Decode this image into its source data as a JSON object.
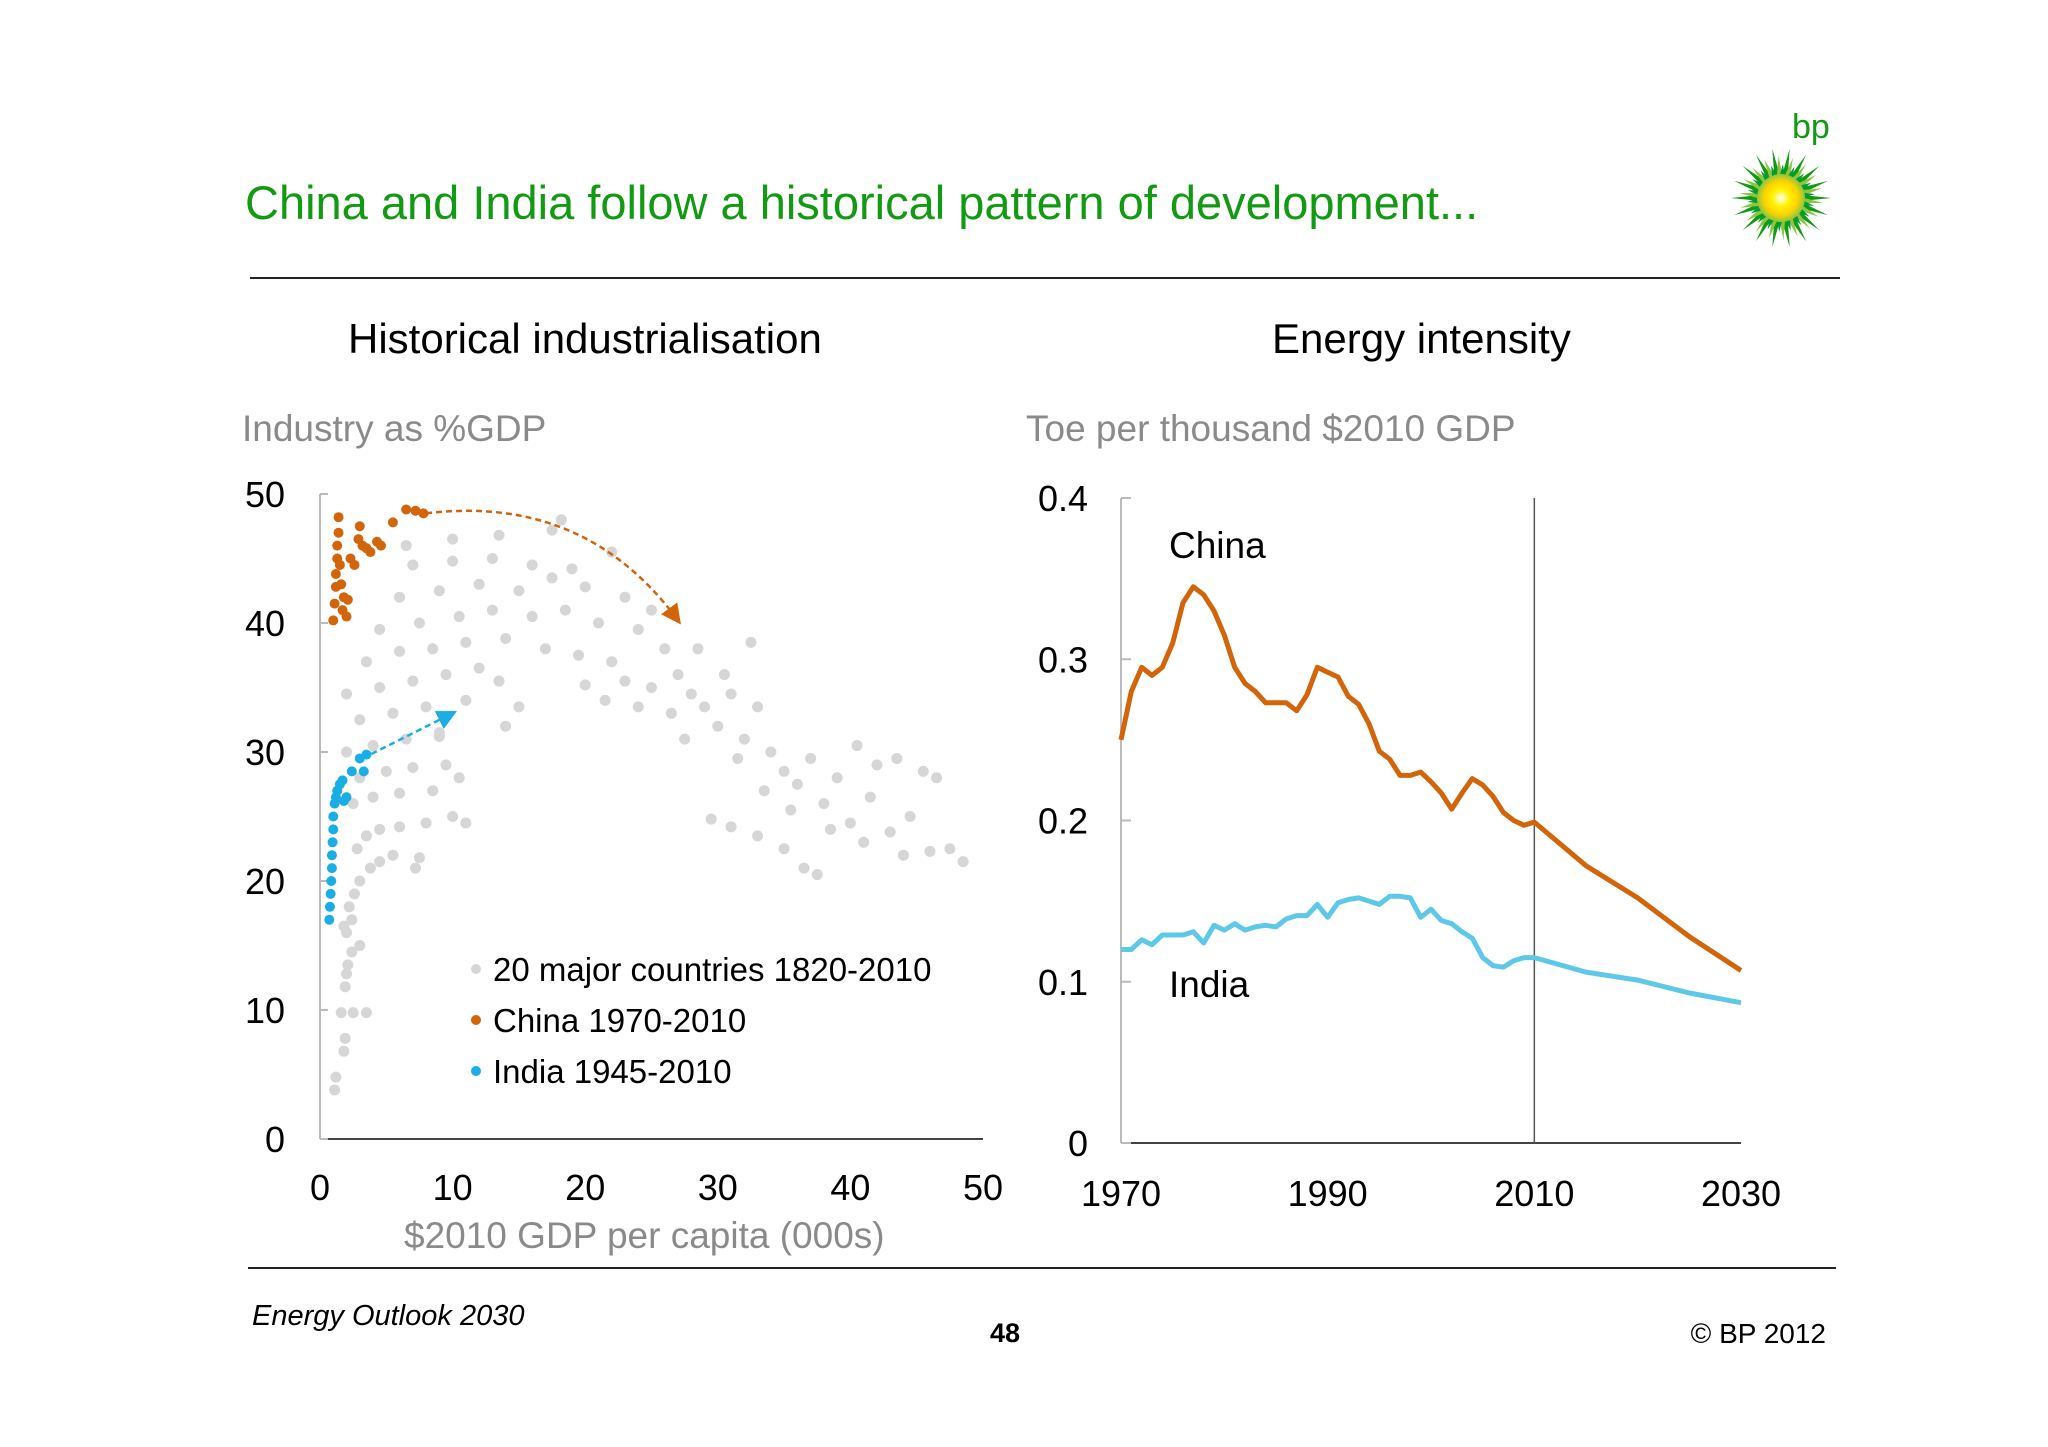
{
  "header": {
    "title": "China and India follow a historical pattern of development...",
    "logo_text": "bp"
  },
  "colors": {
    "title": "#139a13",
    "china": "#d2640a",
    "india": "#1aaee5",
    "india_line": "#5ec8e8",
    "countries": "#d6d6d6"
  },
  "footer": {
    "left": "Energy Outlook 2030",
    "page": "48",
    "copyright": "© BP 2012"
  },
  "chart_data": [
    {
      "type": "scatter",
      "title": "Historical industrialisation",
      "ylabel": "Industry as %GDP",
      "xlabel": "$2010 GDP per capita (000s)",
      "xlim": [
        0,
        50
      ],
      "ylim": [
        0,
        50
      ],
      "xticks": [
        "0",
        "10",
        "20",
        "30",
        "40",
        "50"
      ],
      "yticks": [
        "0",
        "10",
        "20",
        "30",
        "40",
        "50"
      ],
      "grid": false,
      "legend": "bottom-right",
      "series": [
        {
          "name": "20 major countries 1820-2010",
          "color": "#d6d6d6",
          "points": [
            [
              1.1,
              3.8
            ],
            [
              1.2,
              4.8
            ],
            [
              1.8,
              6.8
            ],
            [
              1.9,
              7.8
            ],
            [
              1.6,
              9.8
            ],
            [
              2.5,
              9.8
            ],
            [
              3.5,
              9.8
            ],
            [
              1.9,
              11.8
            ],
            [
              2.0,
              12.8
            ],
            [
              2.1,
              13.5
            ],
            [
              1.8,
              16.5
            ],
            [
              2.4,
              17
            ],
            [
              2.2,
              18
            ],
            [
              2.6,
              19
            ],
            [
              3.0,
              20
            ],
            [
              3.8,
              21
            ],
            [
              4.5,
              21.5
            ],
            [
              5.5,
              22
            ],
            [
              7.5,
              21.8
            ],
            [
              7.2,
              21
            ],
            [
              2.8,
              22.5
            ],
            [
              3.5,
              23.5
            ],
            [
              4.5,
              24
            ],
            [
              6.0,
              24.2
            ],
            [
              8.0,
              24.5
            ],
            [
              10.0,
              25
            ],
            [
              2.5,
              26
            ],
            [
              4.0,
              26.5
            ],
            [
              6.0,
              26.8
            ],
            [
              8.5,
              27
            ],
            [
              3.0,
              28
            ],
            [
              5.0,
              28.5
            ],
            [
              7.0,
              28.8
            ],
            [
              9.5,
              29
            ],
            [
              2.0,
              30
            ],
            [
              4.0,
              30.5
            ],
            [
              6.5,
              31
            ],
            [
              9.0,
              31.2
            ],
            [
              3.0,
              32.5
            ],
            [
              5.5,
              33
            ],
            [
              8.0,
              33.5
            ],
            [
              11.0,
              34
            ],
            [
              13.5,
              35.5
            ],
            [
              2.0,
              34.5
            ],
            [
              4.5,
              35
            ],
            [
              7.0,
              35.5
            ],
            [
              9.5,
              36
            ],
            [
              12.0,
              36.5
            ],
            [
              3.5,
              37
            ],
            [
              6.0,
              37.8
            ],
            [
              8.5,
              38
            ],
            [
              11.0,
              38.5
            ],
            [
              14.0,
              38.8
            ],
            [
              17.0,
              38
            ],
            [
              19.5,
              37.5
            ],
            [
              22.0,
              37
            ],
            [
              4.5,
              39.5
            ],
            [
              7.5,
              40
            ],
            [
              10.5,
              40.5
            ],
            [
              13.0,
              41
            ],
            [
              16.0,
              40.5
            ],
            [
              18.5,
              41
            ],
            [
              21.0,
              40
            ],
            [
              24.0,
              39.5
            ],
            [
              6.0,
              42
            ],
            [
              9.0,
              42.5
            ],
            [
              12.0,
              43
            ],
            [
              15.0,
              42.5
            ],
            [
              17.5,
              43.5
            ],
            [
              20.0,
              42.8
            ],
            [
              23.0,
              42
            ],
            [
              7.0,
              44.5
            ],
            [
              10.0,
              44.8
            ],
            [
              13.0,
              45
            ],
            [
              16.0,
              44.5
            ],
            [
              19.0,
              44.2
            ],
            [
              6.5,
              46
            ],
            [
              10.0,
              46.5
            ],
            [
              13.5,
              46.8
            ],
            [
              17.5,
              47.2
            ],
            [
              18.2,
              48
            ],
            [
              22.0,
              45.5
            ],
            [
              25.0,
              41
            ],
            [
              26.0,
              38
            ],
            [
              27.0,
              36
            ],
            [
              28.0,
              34.5
            ],
            [
              26.5,
              33
            ],
            [
              29.0,
              33.5
            ],
            [
              30.0,
              32
            ],
            [
              31.0,
              34.5
            ],
            [
              32.0,
              31
            ],
            [
              33.0,
              33.5
            ],
            [
              31.5,
              29.5
            ],
            [
              34.0,
              30
            ],
            [
              35.0,
              28.5
            ],
            [
              33.5,
              27
            ],
            [
              36.0,
              27.5
            ],
            [
              37.0,
              29.5
            ],
            [
              35.5,
              25.5
            ],
            [
              38.0,
              26
            ],
            [
              39.0,
              28
            ],
            [
              40.5,
              30.5
            ],
            [
              38.5,
              24
            ],
            [
              40.0,
              24.5
            ],
            [
              41.5,
              26.5
            ],
            [
              42.0,
              29
            ],
            [
              43.5,
              29.5
            ],
            [
              41.0,
              23
            ],
            [
              43.0,
              23.8
            ],
            [
              44.5,
              25
            ],
            [
              45.5,
              28.5
            ],
            [
              46.5,
              28
            ],
            [
              44.0,
              22
            ],
            [
              46.0,
              22.3
            ],
            [
              47.5,
              22.5
            ],
            [
              48.5,
              21.5
            ],
            [
              29.5,
              24.8
            ],
            [
              31.0,
              24.2
            ],
            [
              33.0,
              23.5
            ],
            [
              35.0,
              22.5
            ],
            [
              36.5,
              21
            ],
            [
              37.5,
              20.5
            ],
            [
              23.0,
              35.5
            ],
            [
              25.0,
              35
            ],
            [
              27.5,
              31
            ],
            [
              30.5,
              36
            ],
            [
              32.5,
              38.5
            ],
            [
              28.5,
              38
            ],
            [
              24.0,
              33.5
            ],
            [
              20.0,
              35.2
            ],
            [
              21.5,
              34
            ],
            [
              15.0,
              33.5
            ],
            [
              14.0,
              32
            ],
            [
              9.0,
              31.5
            ],
            [
              10.5,
              28
            ],
            [
              11.0,
              24.5
            ],
            [
              3.0,
              15
            ],
            [
              2.4,
              14.5
            ],
            [
              2.0,
              16
            ]
          ]
        },
        {
          "name": "China 1970-2010",
          "color": "#d2640a",
          "points": [
            [
              1.0,
              40.2
            ],
            [
              1.1,
              41.5
            ],
            [
              1.2,
              42.8
            ],
            [
              1.2,
              43.8
            ],
            [
              1.3,
              45
            ],
            [
              1.3,
              46
            ],
            [
              1.4,
              47
            ],
            [
              1.4,
              48.2
            ],
            [
              1.5,
              44.5
            ],
            [
              1.6,
              43
            ],
            [
              1.7,
              41
            ],
            [
              1.8,
              42
            ],
            [
              2.0,
              40.5
            ],
            [
              2.1,
              41.8
            ],
            [
              2.3,
              45
            ],
            [
              2.6,
              44.5
            ],
            [
              2.9,
              46.5
            ],
            [
              3.0,
              47.5
            ],
            [
              3.2,
              46
            ],
            [
              3.5,
              45.8
            ],
            [
              3.8,
              45.5
            ],
            [
              4.3,
              46.3
            ],
            [
              4.6,
              46
            ],
            [
              5.5,
              47.8
            ],
            [
              6.5,
              48.8
            ],
            [
              7.2,
              48.7
            ],
            [
              7.8,
              48.5
            ]
          ]
        },
        {
          "name": "India 1945-2010",
          "color": "#1aaee5",
          "points": [
            [
              0.7,
              17
            ],
            [
              0.75,
              18
            ],
            [
              0.8,
              19
            ],
            [
              0.85,
              20
            ],
            [
              0.9,
              21
            ],
            [
              0.9,
              22
            ],
            [
              0.95,
              23
            ],
            [
              1.0,
              24
            ],
            [
              1.0,
              25
            ],
            [
              1.1,
              26
            ],
            [
              1.2,
              26.5
            ],
            [
              1.3,
              27
            ],
            [
              1.5,
              27.5
            ],
            [
              1.7,
              27.8
            ],
            [
              1.8,
              26.2
            ],
            [
              2.0,
              26.5
            ],
            [
              2.4,
              28.5
            ],
            [
              3.0,
              29.5
            ],
            [
              3.3,
              28.5
            ],
            [
              3.5,
              29.8
            ]
          ]
        }
      ],
      "arrows": [
        {
          "series": "China 1970-2010",
          "from": [
            8,
            48.5
          ],
          "to": [
            27,
            40.2
          ]
        },
        {
          "series": "India 1945-2010",
          "from": [
            3.2,
            29.5
          ],
          "to": [
            10,
            33
          ]
        }
      ]
    },
    {
      "type": "line",
      "title": "Energy intensity",
      "ylabel": "Toe per thousand $2010 GDP",
      "xlim": [
        1970,
        2030
      ],
      "ylim": [
        0,
        0.4
      ],
      "xticks": [
        "1970",
        "1990",
        "2010",
        "2030"
      ],
      "yticks": [
        "0",
        "0.1",
        "0.2",
        "0.3",
        "0.4"
      ],
      "grid": false,
      "reference_line_x": 2010,
      "x": [
        1970,
        1971,
        1972,
        1973,
        1974,
        1975,
        1976,
        1977,
        1978,
        1979,
        1980,
        1981,
        1982,
        1983,
        1984,
        1985,
        1986,
        1987,
        1988,
        1989,
        1990,
        1991,
        1992,
        1993,
        1994,
        1995,
        1996,
        1997,
        1998,
        1999,
        2000,
        2001,
        2002,
        2003,
        2004,
        2005,
        2006,
        2007,
        2008,
        2009,
        2010,
        2015,
        2020,
        2025,
        2030
      ],
      "series": [
        {
          "name": "China",
          "color": "#d2640a",
          "values": [
            0.25,
            0.28,
            0.295,
            0.29,
            0.295,
            0.31,
            0.335,
            0.345,
            0.34,
            0.33,
            0.315,
            0.295,
            0.285,
            0.28,
            0.273,
            0.273,
            0.273,
            0.268,
            0.278,
            0.295,
            0.292,
            0.289,
            0.277,
            0.272,
            0.26,
            0.243,
            0.238,
            0.228,
            0.228,
            0.23,
            0.224,
            0.217,
            0.207,
            0.217,
            0.226,
            0.222,
            0.215,
            0.205,
            0.2,
            0.197,
            0.199,
            0.172,
            0.152,
            0.128,
            0.107
          ]
        },
        {
          "name": "India",
          "color": "#5ec8e8",
          "values": [
            0.12,
            0.12,
            0.126,
            0.123,
            0.129,
            0.129,
            0.129,
            0.131,
            0.124,
            0.135,
            0.132,
            0.136,
            0.132,
            0.134,
            0.135,
            0.134,
            0.139,
            0.141,
            0.141,
            0.148,
            0.14,
            0.149,
            0.151,
            0.152,
            0.15,
            0.148,
            0.153,
            0.153,
            0.152,
            0.14,
            0.145,
            0.138,
            0.136,
            0.131,
            0.127,
            0.115,
            0.11,
            0.109,
            0.113,
            0.115,
            0.115,
            0.106,
            0.101,
            0.093,
            0.087
          ]
        }
      ]
    }
  ]
}
